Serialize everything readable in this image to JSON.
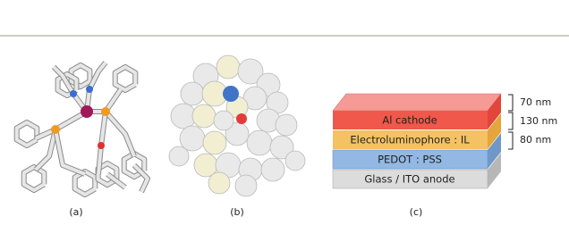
{
  "panels": [
    {
      "label": "(a)"
    },
    {
      "label": "(b)"
    },
    {
      "label": "(c)",
      "layers": [
        "Al cathode",
        "Electroluminophore : IL",
        "PEDOT : PSS",
        "Glass / ITO anode"
      ],
      "thicknesses": [
        "70 nm",
        "130 nm",
        "80 nm"
      ]
    }
  ]
}
